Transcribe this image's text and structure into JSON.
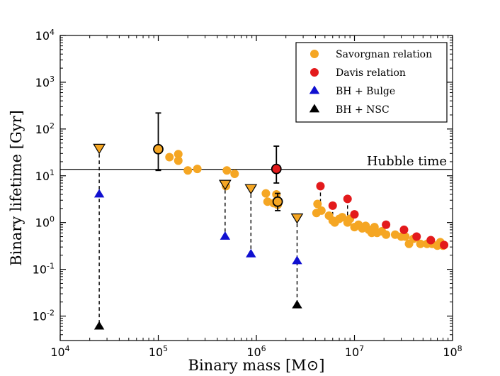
{
  "chart_data": {
    "type": "scatter",
    "title": "",
    "xlabel": "Binary mass [M⊙]",
    "ylabel": "Binary lifetime [Gyr]",
    "xscale": "log",
    "yscale": "log",
    "xlim": [
      10000,
      100000000
    ],
    "ylim": [
      0.003,
      10000
    ],
    "grid": false,
    "legend_position": "top-right",
    "x_ticks": [
      {
        "value": 10000,
        "base": "10",
        "exp": "4"
      },
      {
        "value": 100000,
        "base": "10",
        "exp": "5"
      },
      {
        "value": 1000000,
        "base": "10",
        "exp": "6"
      },
      {
        "value": 10000000,
        "base": "10",
        "exp": "7"
      },
      {
        "value": 100000000,
        "base": "10",
        "exp": "8"
      }
    ],
    "y_ticks": [
      {
        "value": 0.01,
        "base": "10",
        "exp": "-2"
      },
      {
        "value": 0.1,
        "base": "10",
        "exp": "-1"
      },
      {
        "value": 1,
        "base": "10",
        "exp": "0"
      },
      {
        "value": 10,
        "base": "10",
        "exp": "1"
      },
      {
        "value": 100,
        "base": "10",
        "exp": "2"
      },
      {
        "value": 1000,
        "base": "10",
        "exp": "3"
      },
      {
        "value": 10000,
        "base": "10",
        "exp": "4"
      }
    ],
    "hubble_line": {
      "y": 13.7,
      "label": "Hubble time"
    },
    "colors": {
      "savorgnan": "#f5a623",
      "davis": "#e31a1c",
      "bulge": "#1010d0",
      "nsc": "#000000",
      "axis": "#000000",
      "edge": "#000000"
    },
    "series": [
      {
        "name": "Savorgnan relation",
        "marker": "circle",
        "color": "#f5a623",
        "points": [
          [
            130000,
            25
          ],
          [
            160000,
            29
          ],
          [
            160000,
            21
          ],
          [
            200000,
            13
          ],
          [
            250000,
            14
          ],
          [
            500000,
            13
          ],
          [
            600000,
            11
          ],
          [
            490000,
            6.0
          ],
          [
            1250000,
            4.2
          ],
          [
            1300000,
            2.8
          ],
          [
            1500000,
            2.6
          ],
          [
            1600000,
            4.0
          ],
          [
            1650000,
            2.4
          ],
          [
            4200000,
            2.5
          ],
          [
            4100000,
            1.6
          ],
          [
            4600000,
            1.8
          ],
          [
            5500000,
            1.4
          ],
          [
            6000000,
            1.1
          ],
          [
            6300000,
            1.0
          ],
          [
            7000000,
            1.2
          ],
          [
            7500000,
            1.3
          ],
          [
            8500000,
            1.0
          ],
          [
            9000000,
            1.2
          ],
          [
            10000000,
            0.8
          ],
          [
            11000000,
            0.9
          ],
          [
            12000000,
            0.75
          ],
          [
            13000000,
            0.85
          ],
          [
            14000000,
            0.7
          ],
          [
            15000000,
            0.6
          ],
          [
            16000000,
            0.8
          ],
          [
            17000000,
            0.6
          ],
          [
            19000000,
            0.65
          ],
          [
            21000000,
            0.55
          ],
          [
            26000000,
            0.55
          ],
          [
            30000000,
            0.5
          ],
          [
            33000000,
            0.5
          ],
          [
            36000000,
            0.35
          ],
          [
            40000000,
            0.45
          ],
          [
            47000000,
            0.35
          ],
          [
            55000000,
            0.35
          ],
          [
            62000000,
            0.35
          ],
          [
            70000000,
            0.32
          ],
          [
            75000000,
            0.38
          ],
          [
            80000000,
            0.32
          ]
        ]
      },
      {
        "name": "Davis relation",
        "marker": "circle",
        "color": "#e31a1c",
        "points": [
          [
            4500000,
            6.0
          ],
          [
            6000000,
            2.3
          ],
          [
            8500000,
            3.2
          ],
          [
            10000000,
            1.5
          ],
          [
            21000000,
            0.9
          ],
          [
            32000000,
            0.7
          ],
          [
            43000000,
            0.5
          ],
          [
            60000000,
            0.42
          ],
          [
            82000000,
            0.33
          ]
        ]
      },
      {
        "name": "BH + Bulge",
        "marker": "triangle",
        "color": "#1010d0",
        "points": [
          [
            25000,
            4.0
          ],
          [
            480000,
            0.5
          ],
          [
            880000,
            0.21
          ],
          [
            2600000,
            0.15
          ]
        ]
      },
      {
        "name": "BH + NSC",
        "marker": "triangle",
        "color": "#000000",
        "points": [
          [
            25000,
            0.006
          ],
          [
            2600000,
            0.017
          ]
        ]
      }
    ],
    "upper_limits": [
      {
        "x": 25000,
        "y": 40,
        "color": "#f5a623"
      },
      {
        "x": 480000,
        "y": 6.8,
        "color": "#f5a623"
      },
      {
        "x": 880000,
        "y": 5.5,
        "color": "#f5a623"
      },
      {
        "x": 2600000,
        "y": 1.3,
        "color": "#f5a623"
      }
    ],
    "dashed_links": [
      {
        "x": 25000,
        "y_top": 40,
        "y_bottom": 0.006
      },
      {
        "x": 480000,
        "y_top": 6.8,
        "y_bottom": 0.5
      },
      {
        "x": 880000,
        "y_top": 5.5,
        "y_bottom": 0.21
      },
      {
        "x": 2600000,
        "y_top": 1.3,
        "y_bottom": 0.017
      },
      {
        "x": 4500000,
        "y_top": 6.0,
        "y_bottom": 2.2
      },
      {
        "x": 6000000,
        "y_top": 2.3,
        "y_bottom": 1.0
      },
      {
        "x": 8500000,
        "y_top": 3.2,
        "y_bottom": 1.2
      }
    ],
    "error_points": [
      {
        "x": 100000,
        "y": 37,
        "yerr_low": 13,
        "yerr_high": 220,
        "color": "#f5a623"
      },
      {
        "x": 1600000,
        "y": 14,
        "yerr_low": 7.0,
        "yerr_high": 43,
        "color": "#e31a1c"
      },
      {
        "x": 1650000,
        "y": 2.8,
        "yerr_low": 1.8,
        "yerr_high": 4.2,
        "color": "#f5a623"
      }
    ]
  }
}
